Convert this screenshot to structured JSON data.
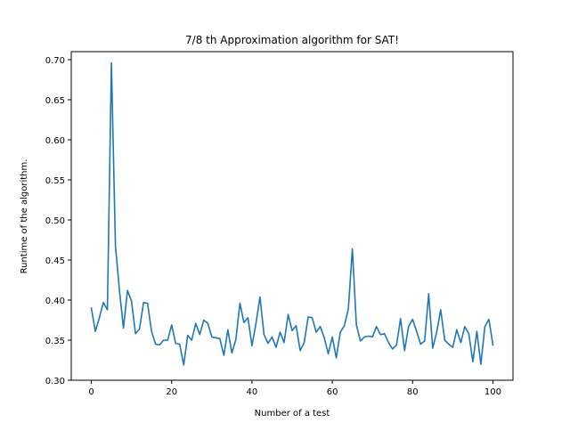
{
  "chart_data": {
    "type": "line",
    "title": "7/8 th Approximation algorithm for SAT!",
    "xlabel": "Number of a test",
    "ylabel": "Runtime of the algorithm.",
    "xlim": [
      -5,
      105
    ],
    "ylim": [
      0.3,
      0.71
    ],
    "xticks": [
      0,
      20,
      40,
      60,
      80,
      100
    ],
    "xtick_labels": [
      "0",
      "20",
      "40",
      "60",
      "80",
      "100"
    ],
    "yticks": [
      0.3,
      0.35,
      0.4,
      0.45,
      0.5,
      0.55,
      0.6,
      0.65,
      0.7
    ],
    "ytick_labels": [
      "0.30",
      "0.35",
      "0.40",
      "0.45",
      "0.50",
      "0.55",
      "0.60",
      "0.65",
      "0.70"
    ],
    "grid": false,
    "legend": "none",
    "series": [
      {
        "color": "#1f77b4",
        "x": [
          0,
          1,
          2,
          3,
          4,
          5,
          6,
          7,
          8,
          9,
          10,
          11,
          12,
          13,
          14,
          15,
          16,
          17,
          18,
          19,
          20,
          21,
          22,
          23,
          24,
          25,
          26,
          27,
          28,
          29,
          30,
          31,
          32,
          33,
          34,
          35,
          36,
          37,
          38,
          39,
          40,
          41,
          42,
          43,
          44,
          45,
          46,
          47,
          48,
          49,
          50,
          51,
          52,
          53,
          54,
          55,
          56,
          57,
          58,
          59,
          60,
          61,
          62,
          63,
          64,
          65,
          66,
          67,
          68,
          69,
          70,
          71,
          72,
          73,
          74,
          75,
          76,
          77,
          78,
          79,
          80,
          81,
          82,
          83,
          84,
          85,
          86,
          87,
          88,
          89,
          90,
          91,
          92,
          93,
          94,
          95,
          96,
          97,
          98,
          99,
          100
        ],
        "values": [
          0.39,
          0.361,
          0.378,
          0.397,
          0.388,
          0.696,
          0.468,
          0.412,
          0.365,
          0.412,
          0.399,
          0.358,
          0.364,
          0.397,
          0.396,
          0.361,
          0.345,
          0.344,
          0.35,
          0.35,
          0.369,
          0.346,
          0.345,
          0.319,
          0.356,
          0.35,
          0.371,
          0.357,
          0.375,
          0.371,
          0.354,
          0.353,
          0.352,
          0.331,
          0.363,
          0.334,
          0.351,
          0.396,
          0.372,
          0.378,
          0.343,
          0.371,
          0.404,
          0.357,
          0.346,
          0.354,
          0.341,
          0.36,
          0.347,
          0.382,
          0.362,
          0.368,
          0.337,
          0.347,
          0.379,
          0.378,
          0.36,
          0.367,
          0.353,
          0.333,
          0.354,
          0.328,
          0.36,
          0.368,
          0.389,
          0.464,
          0.369,
          0.349,
          0.354,
          0.355,
          0.354,
          0.367,
          0.357,
          0.358,
          0.347,
          0.339,
          0.344,
          0.377,
          0.337,
          0.367,
          0.376,
          0.361,
          0.345,
          0.349,
          0.408,
          0.34,
          0.36,
          0.388,
          0.35,
          0.345,
          0.341,
          0.363,
          0.347,
          0.367,
          0.358,
          0.323,
          0.361,
          0.32,
          0.367,
          0.376,
          0.344
        ]
      }
    ]
  }
}
